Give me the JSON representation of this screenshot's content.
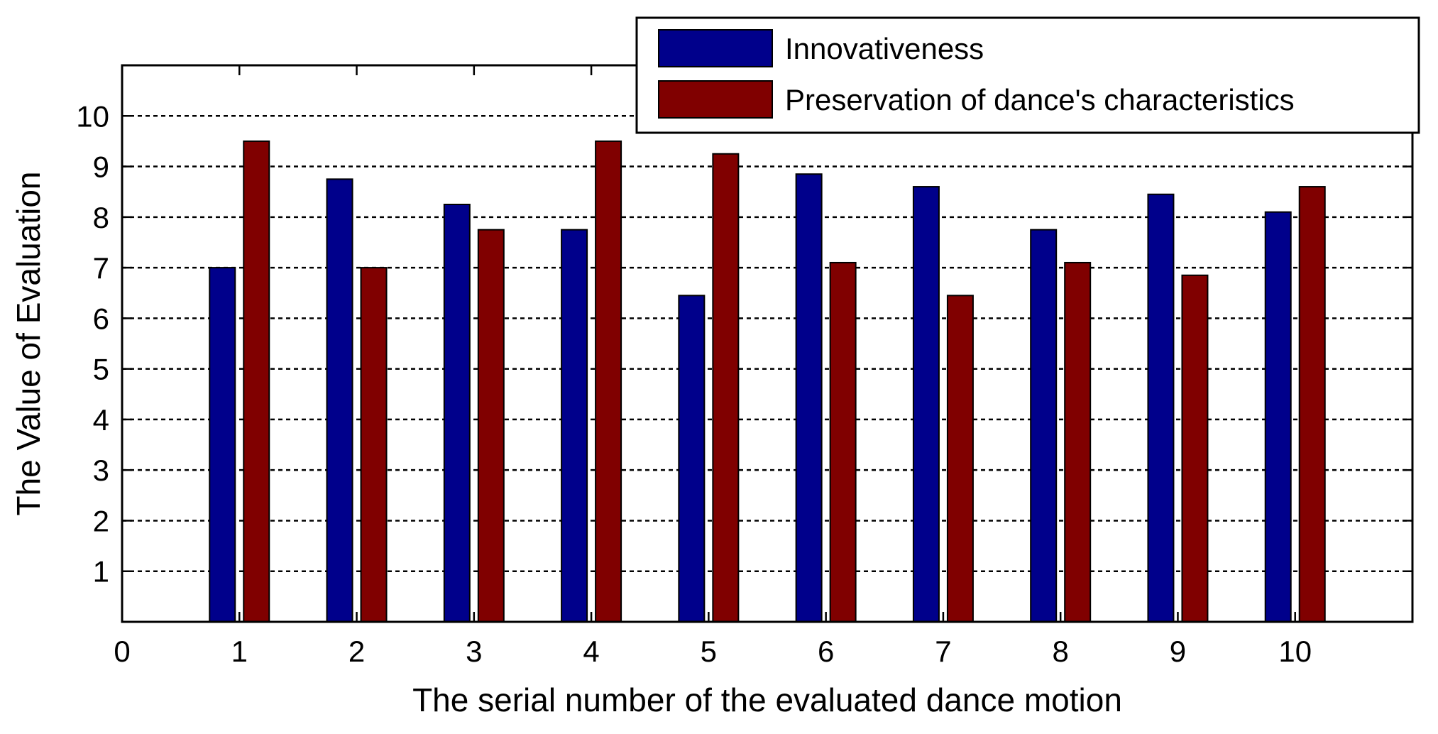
{
  "chart_data": {
    "type": "bar",
    "xlabel": "The serial number of the evaluated dance motion",
    "ylabel": "The Value of Evaluation",
    "xlim": [
      0,
      11
    ],
    "ylim": [
      0,
      11
    ],
    "x_ticks": [
      0,
      1,
      2,
      3,
      4,
      5,
      6,
      7,
      8,
      9,
      10
    ],
    "y_ticks": [
      1,
      2,
      3,
      4,
      5,
      6,
      7,
      8,
      9,
      10
    ],
    "categories": [
      1,
      2,
      3,
      4,
      5,
      6,
      7,
      8,
      9,
      10
    ],
    "grid": "horizontal dashed",
    "legend_position": "top-right",
    "series": [
      {
        "name": "Innovativeness",
        "color": "#00008b",
        "values": [
          7.0,
          8.75,
          8.25,
          7.75,
          6.45,
          8.85,
          8.6,
          7.75,
          8.45,
          8.1
        ]
      },
      {
        "name": "Preservation of dance's characteristics",
        "color": "#800000",
        "values": [
          9.5,
          7.0,
          7.75,
          9.5,
          9.25,
          7.1,
          6.45,
          7.1,
          6.85,
          8.6
        ]
      }
    ]
  }
}
